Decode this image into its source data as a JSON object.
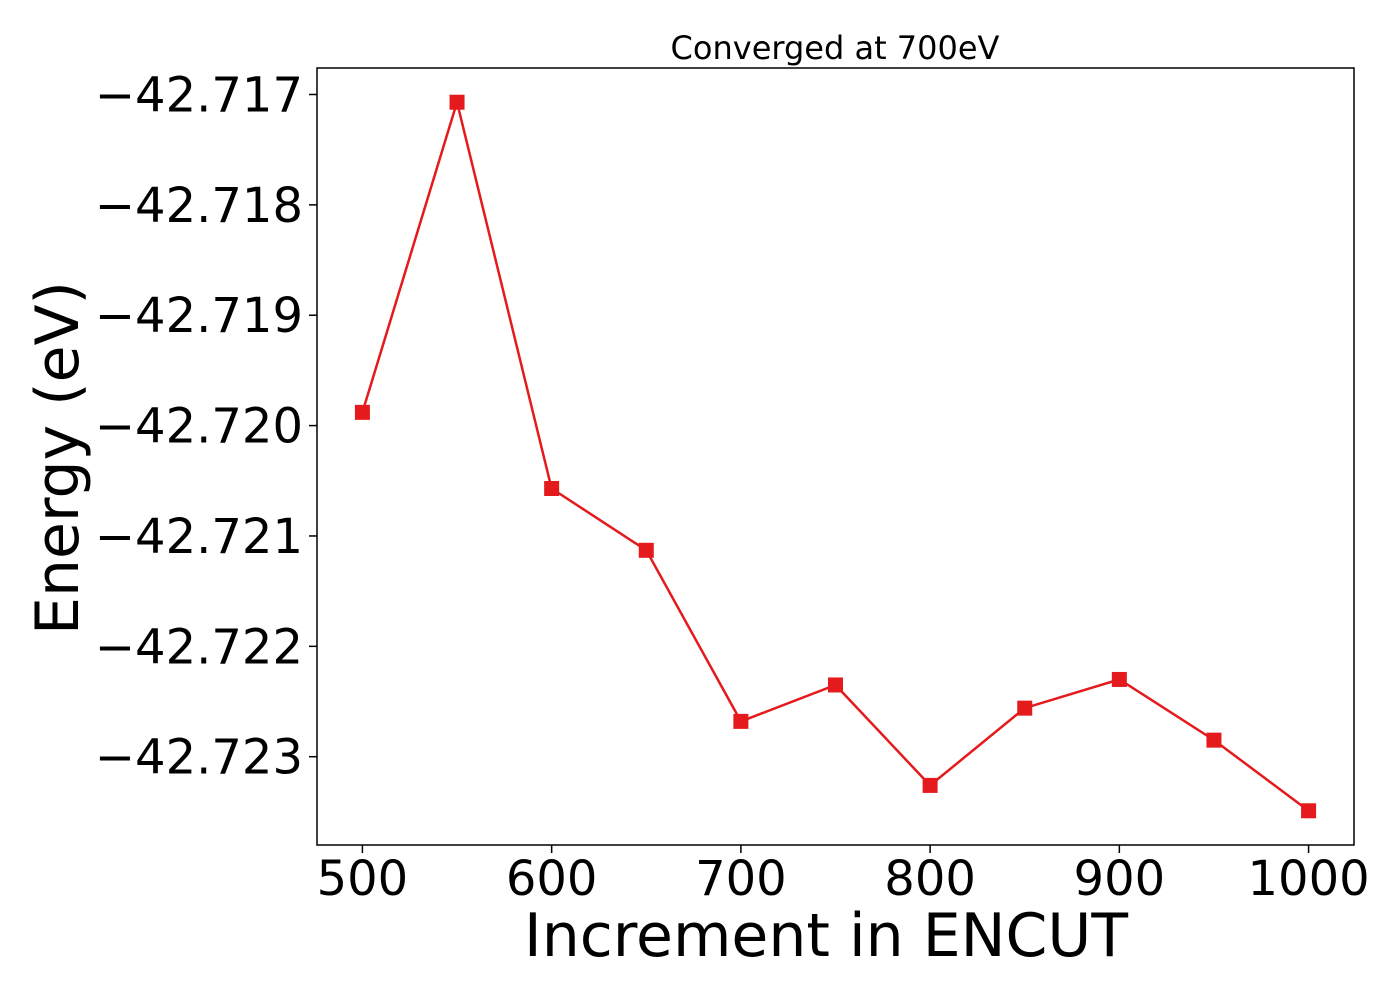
{
  "chart_data": {
    "type": "line",
    "title": "Converged at 700eV",
    "xlabel": "Increment in ENCUT",
    "ylabel": "Energy (eV)",
    "x": [
      500,
      550,
      600,
      650,
      700,
      750,
      800,
      850,
      900,
      950,
      1000
    ],
    "series": [
      {
        "values": [
          -42.71988,
          -42.71707,
          -42.72057,
          -42.72113,
          -42.72268,
          -42.72235,
          -42.72326,
          -42.72256,
          -42.7223,
          -42.72285,
          -42.72349
        ],
        "color": "#e41a1c",
        "marker": "square"
      }
    ],
    "xlim": [
      476,
      1024
    ],
    "ylim": [
      -42.7238,
      -42.71676
    ],
    "xticks": [
      500,
      600,
      700,
      800,
      900,
      1000
    ],
    "xtick_labels": [
      "500",
      "600",
      "700",
      "800",
      "900",
      "1000"
    ],
    "yticks": [
      -42.717,
      -42.718,
      -42.719,
      -42.72,
      -42.721,
      -42.722,
      -42.723
    ],
    "ytick_labels": [
      "−42.717",
      "−42.718",
      "−42.719",
      "−42.720",
      "−42.721",
      "−42.722",
      "−42.723"
    ],
    "grid": false,
    "legend": "none"
  }
}
